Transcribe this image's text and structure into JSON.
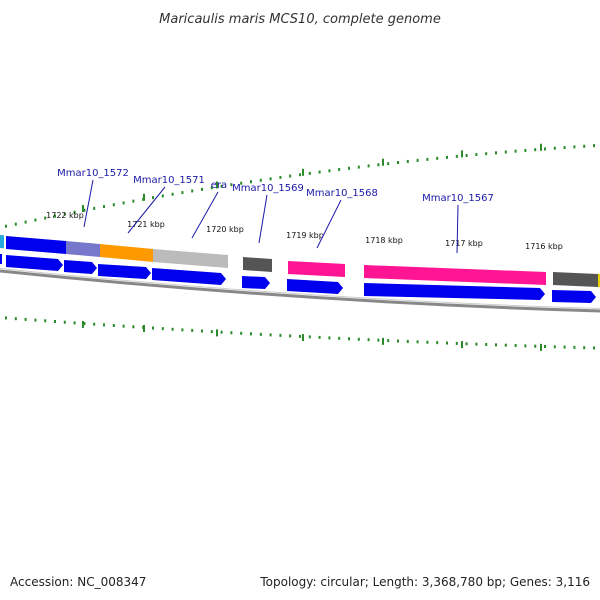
{
  "title": "Maricaulis maris MCS10, complete genome",
  "scale_ticks": [
    {
      "label": "1722 kbp"
    },
    {
      "label": "1721 kbp"
    },
    {
      "label": "1720 kbp"
    },
    {
      "label": "1719 kbp"
    },
    {
      "label": "1718 kbp"
    },
    {
      "label": "1717 kbp"
    },
    {
      "label": "1716 kbp"
    }
  ],
  "gene_labels": [
    "Mmar10_1572",
    "Mmar10_1571",
    "era",
    "Mmar10_1569",
    "Mmar10_1568",
    "Mmar10_1567"
  ],
  "footer": {
    "accession": "Accession: NC_008347",
    "summary": "Topology: circular; Length: 3,368,780 bp; Genes: 3,116"
  },
  "colors": {
    "cds": "#0000ee",
    "backbone": "#888888",
    "tick": "#2a8a2a",
    "gene_label": "#1a1aa6",
    "feature_grey": "#bbbbbb",
    "feature_dark": "#555555",
    "feature_orange": "#ff9900",
    "feature_purple": "#7777cc",
    "feature_pink": "#ff1493",
    "feature_cyan": "#22aadd"
  }
}
